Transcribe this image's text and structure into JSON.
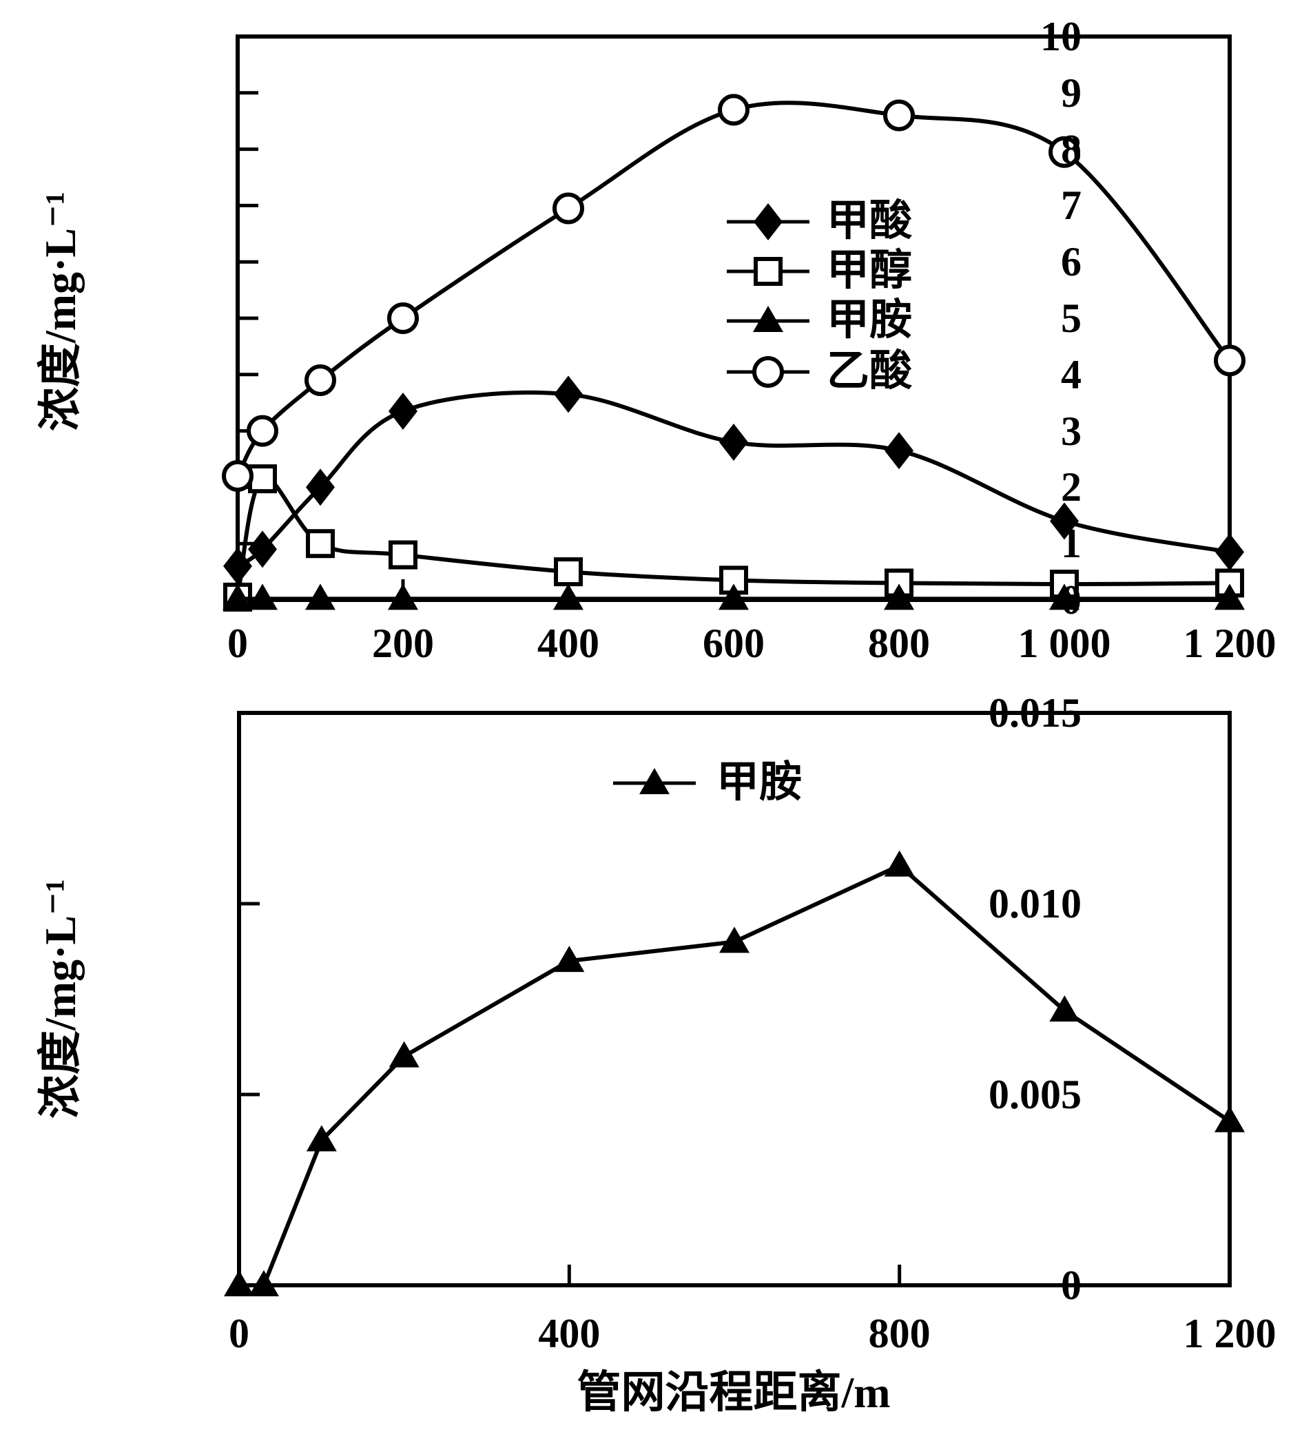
{
  "figure": {
    "background_color": "#ffffff",
    "line_color": "#000000"
  },
  "chart_data": [
    {
      "type": "line",
      "title": "",
      "ylabel": "浓度/mg·L⁻¹",
      "xlabel": "",
      "xlim": [
        0,
        1200
      ],
      "ylim": [
        0,
        10
      ],
      "grid": false,
      "legend_position": "inside-upper-right",
      "x": [
        0,
        30,
        100,
        200,
        400,
        600,
        800,
        1000,
        1200
      ],
      "x_ticks": [
        {
          "v": 0,
          "label": "0"
        },
        {
          "v": 200,
          "label": "200"
        },
        {
          "v": 400,
          "label": "400"
        },
        {
          "v": 600,
          "label": "600"
        },
        {
          "v": 800,
          "label": "800"
        },
        {
          "v": 1000,
          "label": "1 000"
        },
        {
          "v": 1200,
          "label": "1 200"
        }
      ],
      "y_ticks": [
        {
          "v": 0,
          "label": "0"
        },
        {
          "v": 1,
          "label": "1"
        },
        {
          "v": 2,
          "label": "2"
        },
        {
          "v": 3,
          "label": "3"
        },
        {
          "v": 4,
          "label": "4"
        },
        {
          "v": 5,
          "label": "5"
        },
        {
          "v": 6,
          "label": "6"
        },
        {
          "v": 7,
          "label": "7"
        },
        {
          "v": 8,
          "label": "8"
        },
        {
          "v": 9,
          "label": "9"
        },
        {
          "v": 10,
          "label": "10"
        }
      ],
      "series": [
        {
          "name": "甲酸",
          "marker": "filled-diamond",
          "smooth": true,
          "values": [
            0.6,
            0.9,
            2.0,
            3.35,
            3.65,
            2.8,
            2.65,
            1.4,
            0.85
          ]
        },
        {
          "name": "甲醇",
          "marker": "open-square",
          "smooth": true,
          "values": [
            0.05,
            2.15,
            1.0,
            0.8,
            0.5,
            0.35,
            0.3,
            0.28,
            0.3
          ]
        },
        {
          "name": "甲胺",
          "marker": "filled-triangle",
          "smooth": false,
          "values": [
            0.02,
            0.02,
            0.02,
            0.02,
            0.02,
            0.02,
            0.02,
            0.02,
            0.02
          ]
        },
        {
          "name": "乙酸",
          "marker": "open-circle",
          "smooth": true,
          "values": [
            2.2,
            3.0,
            3.9,
            5.0,
            6.95,
            8.7,
            8.6,
            7.95,
            4.25
          ]
        }
      ],
      "legend": [
        {
          "label": "甲酸",
          "marker": "filled-diamond"
        },
        {
          "label": "甲醇",
          "marker": "open-square"
        },
        {
          "label": "甲胺",
          "marker": "filled-triangle"
        },
        {
          "label": "乙酸",
          "marker": "open-circle"
        }
      ]
    },
    {
      "type": "line",
      "title": "",
      "ylabel": "浓度/mg·L⁻¹",
      "xlabel": "管网沿程距离/m",
      "xlim": [
        0,
        1200
      ],
      "ylim": [
        0,
        0.015
      ],
      "grid": false,
      "legend_position": "inside-top-center",
      "x": [
        0,
        30,
        100,
        200,
        400,
        600,
        800,
        1000,
        1200
      ],
      "x_ticks": [
        {
          "v": 0,
          "label": "0"
        },
        {
          "v": 400,
          "label": "400"
        },
        {
          "v": 800,
          "label": "800"
        },
        {
          "v": 1200,
          "label": "1 200"
        }
      ],
      "y_ticks": [
        {
          "v": 0,
          "label": "0"
        },
        {
          "v": 0.005,
          "label": "0.005"
        },
        {
          "v": 0.01,
          "label": "0.010"
        },
        {
          "v": 0.015,
          "label": "0.015"
        }
      ],
      "series": [
        {
          "name": "甲胺",
          "marker": "filled-triangle",
          "smooth": false,
          "values": [
            0,
            0,
            0.0038,
            0.006,
            0.0085,
            0.009,
            0.011,
            0.0072,
            0.0043
          ]
        }
      ],
      "legend": [
        {
          "label": "甲胺",
          "marker": "filled-triangle"
        }
      ]
    }
  ]
}
